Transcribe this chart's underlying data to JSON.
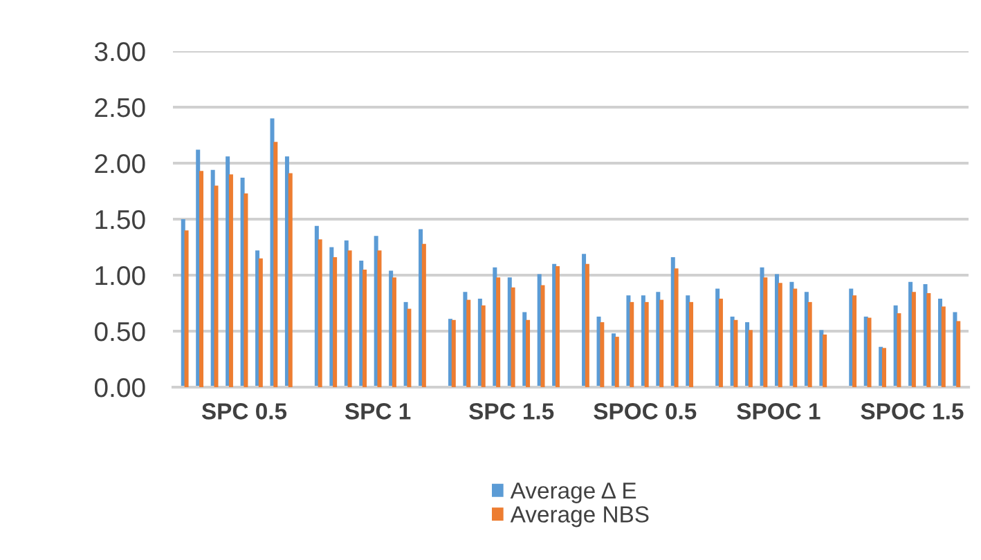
{
  "chart_data": {
    "type": "bar",
    "categories": [
      null,
      null,
      null,
      null,
      "SPC 0.5",
      null,
      null,
      null,
      null,
      null,
      null,
      null,
      null,
      "SPC 1",
      null,
      null,
      null,
      null,
      null,
      null,
      null,
      null,
      "SPC 1.5",
      null,
      null,
      null,
      null,
      null,
      null,
      null,
      null,
      "SPOC 0.5",
      null,
      null,
      null,
      null,
      null,
      null,
      null,
      null,
      "SPOC 1",
      null,
      null,
      null,
      null,
      null,
      null,
      null,
      null,
      "SPOC 1.5",
      null,
      null,
      null
    ],
    "series": [
      {
        "name": "Average Δ E",
        "color": "#5b9bd5",
        "values": [
          1.5,
          2.12,
          1.94,
          2.06,
          1.87,
          1.22,
          2.4,
          2.06,
          null,
          1.44,
          1.25,
          1.31,
          1.13,
          1.35,
          1.04,
          0.76,
          1.41,
          null,
          0.61,
          0.85,
          0.79,
          1.07,
          0.98,
          0.67,
          1.01,
          1.1,
          null,
          1.19,
          0.63,
          0.48,
          0.82,
          0.82,
          0.85,
          1.16,
          0.82,
          null,
          0.88,
          0.63,
          0.58,
          1.07,
          1.01,
          0.94,
          0.85,
          0.51,
          null,
          0.88,
          0.63,
          0.36,
          0.73,
          0.94,
          0.92,
          0.79,
          0.67
        ]
      },
      {
        "name": "Average NBS",
        "color": "#ed7d31",
        "values": [
          1.4,
          1.93,
          1.8,
          1.9,
          1.73,
          1.15,
          2.19,
          1.91,
          null,
          1.32,
          1.16,
          1.22,
          1.05,
          1.22,
          0.98,
          0.7,
          1.28,
          null,
          0.6,
          0.78,
          0.73,
          0.98,
          0.89,
          0.6,
          0.91,
          1.08,
          null,
          1.1,
          0.58,
          0.45,
          0.76,
          0.76,
          0.78,
          1.06,
          0.76,
          null,
          0.79,
          0.6,
          0.51,
          0.98,
          0.93,
          0.88,
          0.76,
          0.47,
          null,
          0.82,
          0.62,
          0.35,
          0.66,
          0.85,
          0.84,
          0.72,
          0.59
        ]
      }
    ],
    "ylim": [
      0,
      3
    ],
    "yticks": [
      {
        "value": 0,
        "label": "0.00"
      },
      {
        "value": 0.5,
        "label": "0.50"
      },
      {
        "value": 1,
        "label": "1.00"
      },
      {
        "value": 1.5,
        "label": "1.50"
      },
      {
        "value": 2,
        "label": "2.00"
      },
      {
        "value": 2.5,
        "label": "2.50"
      },
      {
        "value": 3,
        "label": "3.00"
      }
    ],
    "grid": "y",
    "legend": "bottom"
  }
}
